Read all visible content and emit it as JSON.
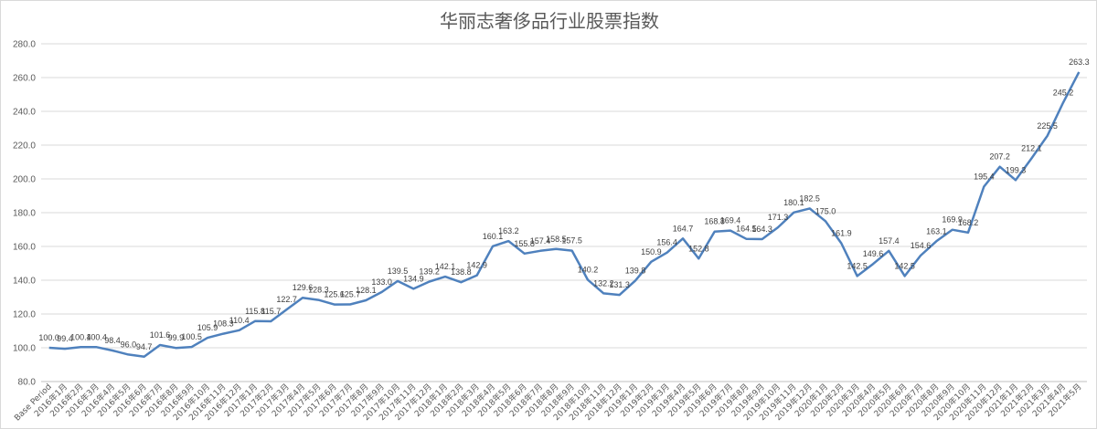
{
  "chart_data": {
    "type": "line",
    "title": "华丽志奢侈品行业股票指数",
    "xlabel": "",
    "ylabel": "",
    "ylim": [
      80,
      280
    ],
    "yticks": [
      80,
      100,
      120,
      140,
      160,
      180,
      200,
      220,
      240,
      260,
      280
    ],
    "grid": true,
    "legend": "none",
    "line_color": "#4F81BD",
    "categories": [
      "Base Period",
      "2016年1月",
      "2016年2月",
      "2016年3月",
      "2016年4月",
      "2016年5月",
      "2016年6月",
      "2016年7月",
      "2016年8月",
      "2016年9月",
      "2016年10月",
      "2016年11月",
      "2016年12月",
      "2017年1月",
      "2017年2月",
      "2017年3月",
      "2017年4月",
      "2017年5月",
      "2017年6月",
      "2017年7月",
      "2017年8月",
      "2017年9月",
      "2017年10月",
      "2017年11月",
      "2017年12月",
      "2018年1月",
      "2018年2月",
      "2018年3月",
      "2018年4月",
      "2018年5月",
      "2018年6月",
      "2018年7月",
      "2018年8月",
      "2018年9月",
      "2018年10月",
      "2018年11月",
      "2018年12月",
      "2019年1月",
      "2019年2月",
      "2019年3月",
      "2019年4月",
      "2019年5月",
      "2019年6月",
      "2019年7月",
      "2019年8月",
      "2019年9月",
      "2019年10月",
      "2019年11月",
      "2019年12月",
      "2020年1月",
      "2020年2月",
      "2020年3月",
      "2020年4月",
      "2020年5月",
      "2020年6月",
      "2020年7月",
      "2020年8月",
      "2020年9月",
      "2020年10月",
      "2020年11月",
      "2020年12月",
      "2021年1月",
      "2021年2月",
      "2021年3月",
      "2021年4月",
      "2021年5月"
    ],
    "series": [
      {
        "values": [
          100.0,
          99.4,
          100.4,
          100.4,
          98.4,
          96.0,
          94.7,
          101.6,
          99.9,
          100.5,
          105.9,
          108.3,
          110.4,
          115.8,
          115.7,
          122.7,
          129.6,
          128.3,
          125.6,
          125.7,
          128.1,
          133.0,
          139.5,
          134.9,
          139.2,
          142.1,
          138.8,
          142.9,
          160.1,
          163.2,
          155.8,
          157.4,
          158.5,
          157.5,
          140.2,
          132.2,
          131.3,
          139.8,
          150.9,
          156.4,
          164.7,
          152.8,
          168.8,
          169.4,
          164.5,
          164.3,
          171.3,
          180.1,
          182.5,
          175.0,
          161.9,
          142.5,
          149.6,
          157.4,
          142.5,
          154.6,
          163.1,
          169.9,
          168.2,
          195.4,
          207.2,
          199.3,
          212.1,
          225.5,
          245.2,
          263.3
        ]
      }
    ]
  }
}
